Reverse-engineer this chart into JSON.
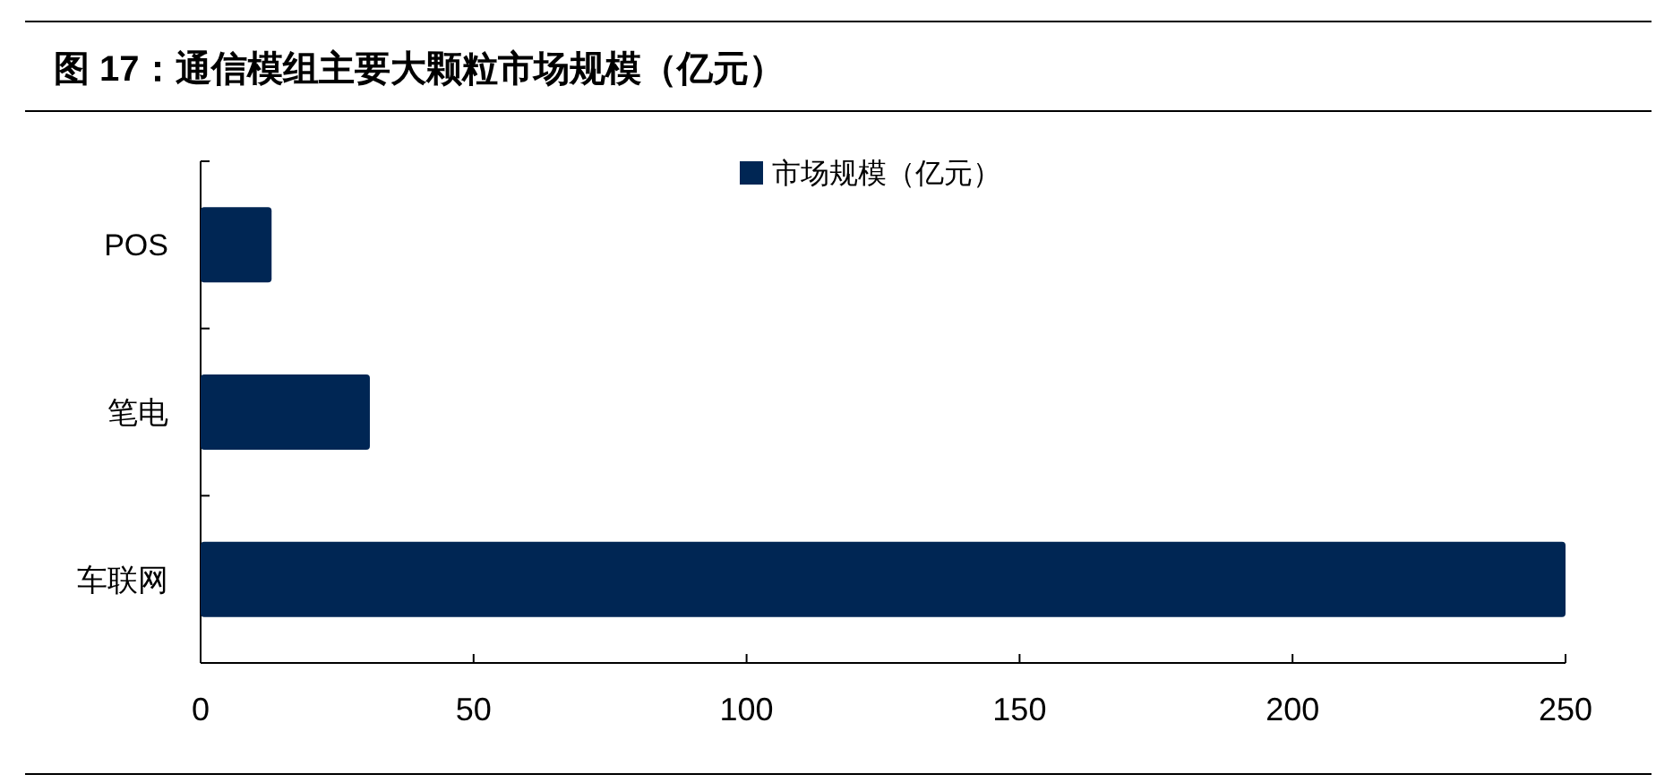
{
  "chart_data": {
    "type": "bar",
    "orientation": "horizontal",
    "title": "图 17：通信模组主要大颗粒市场规模（亿元）",
    "categories": [
      "POS",
      "笔电",
      "车联网"
    ],
    "series": [
      {
        "name": "市场规模（亿元）",
        "color": "#002654",
        "values": [
          13,
          31,
          250
        ]
      }
    ],
    "xlim": [
      0,
      250
    ],
    "xticks": [
      0,
      50,
      100,
      150,
      200,
      250
    ],
    "legend": "top"
  }
}
